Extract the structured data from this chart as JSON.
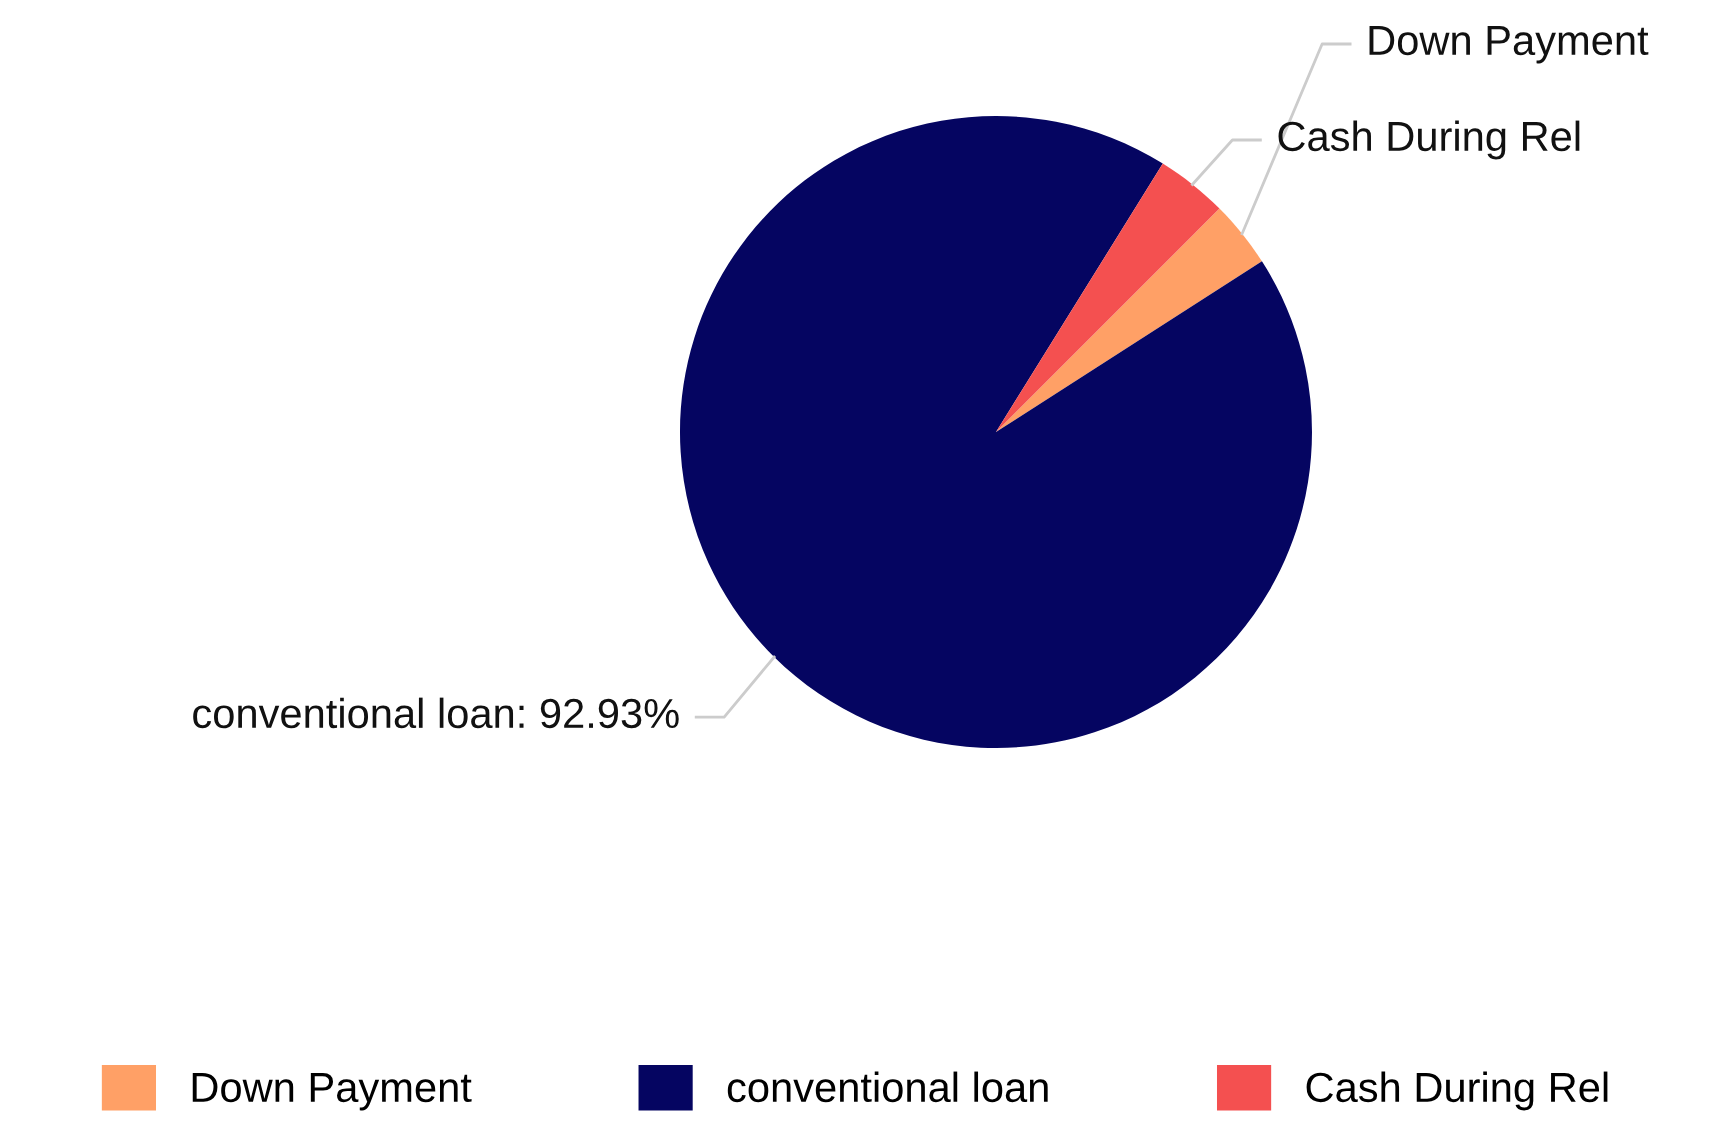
{
  "chart_data": {
    "type": "pie",
    "categories": [
      "Down Payment",
      "conventional loan",
      "Cash During Rel"
    ],
    "values": [
      3.42,
      92.93,
      3.65
    ],
    "colors": [
      "#ffa066",
      "#050561",
      "#f45050"
    ],
    "value_labels": [
      null,
      "conventional loan: 92.93%",
      null
    ],
    "legend": "bottom"
  }
}
